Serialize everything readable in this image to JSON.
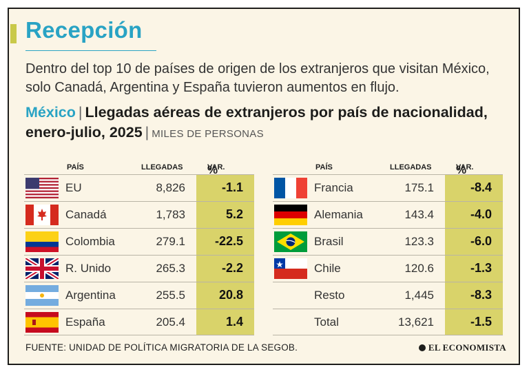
{
  "header": {
    "title": "Recepción",
    "subtitle": "Dentro del top 10 de países de origen de los extranjeros que visitan México, solo Canadá, Argentina y España tuvieron aumentos en flujo.",
    "country": "México",
    "chart_title": "Llegadas aéreas de extranjeros por país de nacionalidad, enero-julio, 2025",
    "units": "MILES DE PERSONAS"
  },
  "columns": {
    "pais": "PAÍS",
    "llegadas": "LLEGADAS",
    "var": "VAR.",
    "var_symbol": "%"
  },
  "chart_data": {
    "type": "table",
    "title": "Llegadas aéreas de extranjeros por país de nacionalidad, enero-julio, 2025",
    "units": "MILES DE PERSONAS",
    "highlight_color": "#d9d36a",
    "left": [
      {
        "pais": "EU",
        "llegadas": "8,826",
        "var": "-1.1",
        "flag": "usa-flag-icon"
      },
      {
        "pais": "Canadá",
        "llegadas": "1,783",
        "var": "5.2",
        "flag": "canada-flag-icon"
      },
      {
        "pais": "Colombia",
        "llegadas": "279.1",
        "var": "-22.5",
        "flag": "colombia-flag-icon"
      },
      {
        "pais": "R. Unido",
        "llegadas": "265.3",
        "var": "-2.2",
        "flag": "uk-flag-icon"
      },
      {
        "pais": "Argentina",
        "llegadas": "255.5",
        "var": "20.8",
        "flag": "argentina-flag-icon"
      },
      {
        "pais": "España",
        "llegadas": "205.4",
        "var": "1.4",
        "flag": "spain-flag-icon"
      }
    ],
    "right": [
      {
        "pais": "Francia",
        "llegadas": "175.1",
        "var": "-8.4",
        "flag": "france-flag-icon"
      },
      {
        "pais": "Alemania",
        "llegadas": "143.4",
        "var": "-4.0",
        "flag": "germany-flag-icon"
      },
      {
        "pais": "Brasil",
        "llegadas": "123.3",
        "var": "-6.0",
        "flag": "brazil-flag-icon"
      },
      {
        "pais": "Chile",
        "llegadas": "120.6",
        "var": "-1.3",
        "flag": "chile-flag-icon"
      },
      {
        "pais": "Resto",
        "llegadas": "1,445",
        "var": "-8.3",
        "flag": ""
      },
      {
        "pais": "Total",
        "llegadas": "13,621",
        "var": "-1.5",
        "flag": ""
      }
    ]
  },
  "footer": {
    "source": "FUENTE: UNIDAD DE POLÍTICA MIGRATORIA DE LA SEGOB.",
    "brand": "EL ECONOMISTA"
  }
}
